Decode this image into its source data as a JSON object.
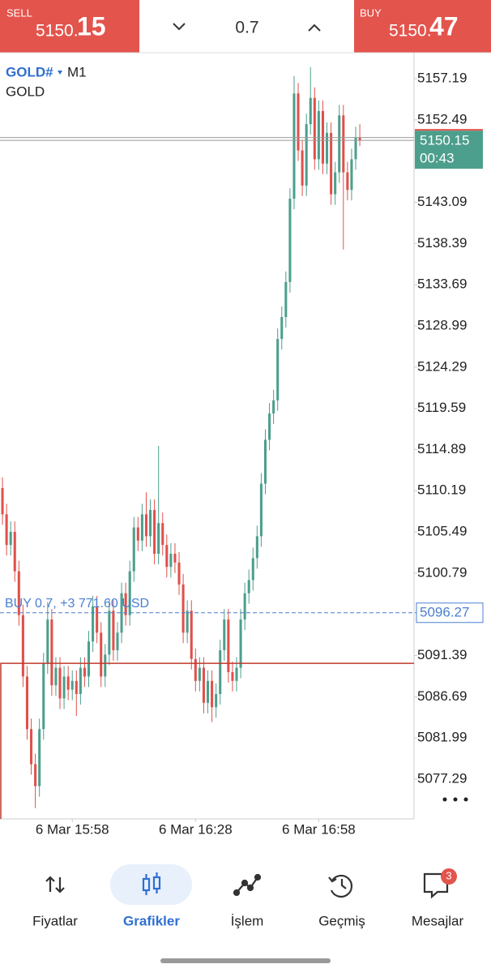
{
  "toolbar": {
    "sell_label": "SELL",
    "sell_price_main": "5150.",
    "sell_price_pips": "15",
    "volume": "0.7",
    "buy_label": "BUY",
    "buy_price_main": "5150.",
    "buy_price_pips": "47"
  },
  "chart_data": {
    "type": "candlestick",
    "symbol": "GOLD#",
    "timeframe": "M1",
    "description": "GOLD",
    "up_color": "#4c9f8c",
    "down_color": "#e0504b",
    "xlim": [
      -0.6,
      100.2
    ],
    "xticks": [
      {
        "value": 17,
        "label": "6 Mar 15:58"
      },
      {
        "value": 47,
        "label": "6 Mar 16:28"
      },
      {
        "value": 77,
        "label": "6 Mar 16:58"
      }
    ],
    "ylim": [
      5072.76,
      5160.15
    ],
    "yticks": [
      5157.19,
      5152.49,
      5143.09,
      5138.39,
      5133.69,
      5128.99,
      5124.29,
      5119.59,
      5114.89,
      5110.19,
      5105.49,
      5100.79,
      5091.39,
      5086.69,
      5081.99,
      5077.29
    ],
    "bid": 5150.15,
    "ask": 5150.47,
    "countdown": "00:43",
    "position_price": 5096.27,
    "position_label": "BUY 0.7, +3 771.60 USD",
    "red_level": 5090.5,
    "open": [
      5110.5,
      5107.5,
      5104.0,
      5105.5,
      5101.0,
      5096.0,
      5089.0,
      5083.0,
      5079.0,
      5076.5,
      5083.0,
      5090.5,
      5095.5,
      5088.0,
      5090.0,
      5086.5,
      5089.0,
      5087.5,
      5088.5,
      5087.0,
      5090.0,
      5089.0,
      5093.0,
      5097.0,
      5094.0,
      5089.0,
      5091.5,
      5096.5,
      5092.0,
      5094.0,
      5098.5,
      5096.0,
      5101.0,
      5106.0,
      5104.5,
      5107.5,
      5105.0,
      5108.0,
      5103.0,
      5106.5,
      5104.0,
      5101.5,
      5103.0,
      5102.0,
      5099.5,
      5094.0,
      5096.5,
      5091.0,
      5088.5,
      5090.0,
      5086.0,
      5088.5,
      5085.5,
      5087.0,
      5092.0,
      5095.5,
      5089.5,
      5088.5,
      5090.0,
      5095.5,
      5098.5,
      5100.0,
      5102.5,
      5105.0,
      5111.0,
      5116.0,
      5119.0,
      5120.5,
      5127.5,
      5130.0,
      5134.0,
      5143.5,
      5155.5,
      5149.0,
      5145.0,
      5152.0,
      5155.0,
      5148.0,
      5153.5,
      5147.5,
      5151.0,
      5144.0,
      5146.5,
      5153.0,
      5146.5,
      5144.5,
      5148.0,
      5150.5
    ],
    "high": [
      5111.7,
      5108.7,
      5106.7,
      5106.7,
      5102.2,
      5097.2,
      5090.2,
      5084.2,
      5080.2,
      5084.2,
      5091.7,
      5097.5,
      5096.7,
      5091.2,
      5091.2,
      5090.2,
      5090.2,
      5089.7,
      5089.7,
      5091.2,
      5091.2,
      5094.2,
      5098.2,
      5098.2,
      5095.2,
      5092.7,
      5097.7,
      5097.7,
      5095.2,
      5099.7,
      5099.7,
      5102.2,
      5107.2,
      5107.2,
      5108.7,
      5110.0,
      5109.2,
      5109.2,
      5115.3,
      5107.7,
      5105.2,
      5104.2,
      5104.2,
      5103.2,
      5100.7,
      5097.7,
      5097.7,
      5092.2,
      5091.2,
      5091.2,
      5089.7,
      5089.7,
      5088.2,
      5093.2,
      5096.7,
      5096.7,
      5090.7,
      5091.2,
      5096.7,
      5099.7,
      5101.2,
      5103.7,
      5106.2,
      5112.2,
      5117.2,
      5120.2,
      5121.7,
      5128.7,
      5131.2,
      5135.2,
      5144.7,
      5157.5,
      5156.7,
      5150.2,
      5153.2,
      5158.5,
      5156.2,
      5154.7,
      5154.7,
      5152.2,
      5152.2,
      5147.7,
      5154.2,
      5154.2,
      5147.7,
      5149.2,
      5151.7,
      5152.0
    ],
    "low": [
      5106.3,
      5102.8,
      5102.8,
      5099.8,
      5094.8,
      5087.8,
      5081.8,
      5077.8,
      5074.0,
      5075.3,
      5081.8,
      5089.3,
      5086.8,
      5086.8,
      5085.3,
      5085.3,
      5086.3,
      5086.3,
      5084.5,
      5085.8,
      5087.8,
      5087.8,
      5091.8,
      5092.8,
      5087.8,
      5087.8,
      5090.3,
      5090.8,
      5090.8,
      5092.8,
      5094.8,
      5094.8,
      5099.8,
      5103.3,
      5103.3,
      5103.8,
      5103.8,
      5101.8,
      5101.8,
      5102.8,
      5100.3,
      5100.3,
      5100.8,
      5098.3,
      5092.8,
      5092.8,
      5089.8,
      5087.3,
      5087.3,
      5084.8,
      5084.8,
      5083.8,
      5084.3,
      5085.8,
      5090.8,
      5088.3,
      5087.3,
      5087.3,
      5088.8,
      5094.3,
      5097.3,
      5098.8,
      5101.3,
      5103.8,
      5109.8,
      5114.8,
      5117.8,
      5119.3,
      5126.3,
      5128.8,
      5132.8,
      5142.3,
      5147.8,
      5143.8,
      5143.8,
      5150.8,
      5146.8,
      5146.8,
      5146.3,
      5146.3,
      5142.8,
      5142.8,
      5145.3,
      5137.7,
      5143.3,
      5143.3,
      5146.8,
      5149.5
    ],
    "close": [
      5107.5,
      5104.0,
      5105.5,
      5101.0,
      5096.0,
      5089.0,
      5083.0,
      5079.0,
      5076.5,
      5083.0,
      5090.5,
      5095.5,
      5088.0,
      5090.0,
      5086.5,
      5089.0,
      5087.5,
      5088.5,
      5087.0,
      5090.0,
      5089.0,
      5093.0,
      5097.0,
      5094.0,
      5089.0,
      5091.5,
      5096.5,
      5092.0,
      5094.0,
      5098.5,
      5096.0,
      5101.0,
      5106.0,
      5104.5,
      5107.5,
      5105.0,
      5108.0,
      5103.0,
      5106.5,
      5104.0,
      5101.5,
      5103.0,
      5102.0,
      5099.5,
      5094.0,
      5096.5,
      5091.0,
      5088.5,
      5090.0,
      5086.0,
      5088.5,
      5085.5,
      5087.0,
      5092.0,
      5095.5,
      5089.5,
      5088.5,
      5090.0,
      5095.5,
      5098.5,
      5100.0,
      5102.5,
      5105.0,
      5111.0,
      5116.0,
      5119.0,
      5120.5,
      5127.5,
      5130.0,
      5134.0,
      5143.5,
      5155.5,
      5149.0,
      5145.0,
      5152.0,
      5155.0,
      5148.0,
      5153.5,
      5147.5,
      5151.0,
      5144.0,
      5146.5,
      5153.0,
      5146.5,
      5144.5,
      5148.0,
      5150.5,
      5150.15
    ]
  },
  "nav": {
    "items": [
      "Fiyatlar",
      "Grafikler",
      "İşlem",
      "Geçmiş",
      "Mesajlar"
    ],
    "active": 1,
    "badge": 3
  }
}
